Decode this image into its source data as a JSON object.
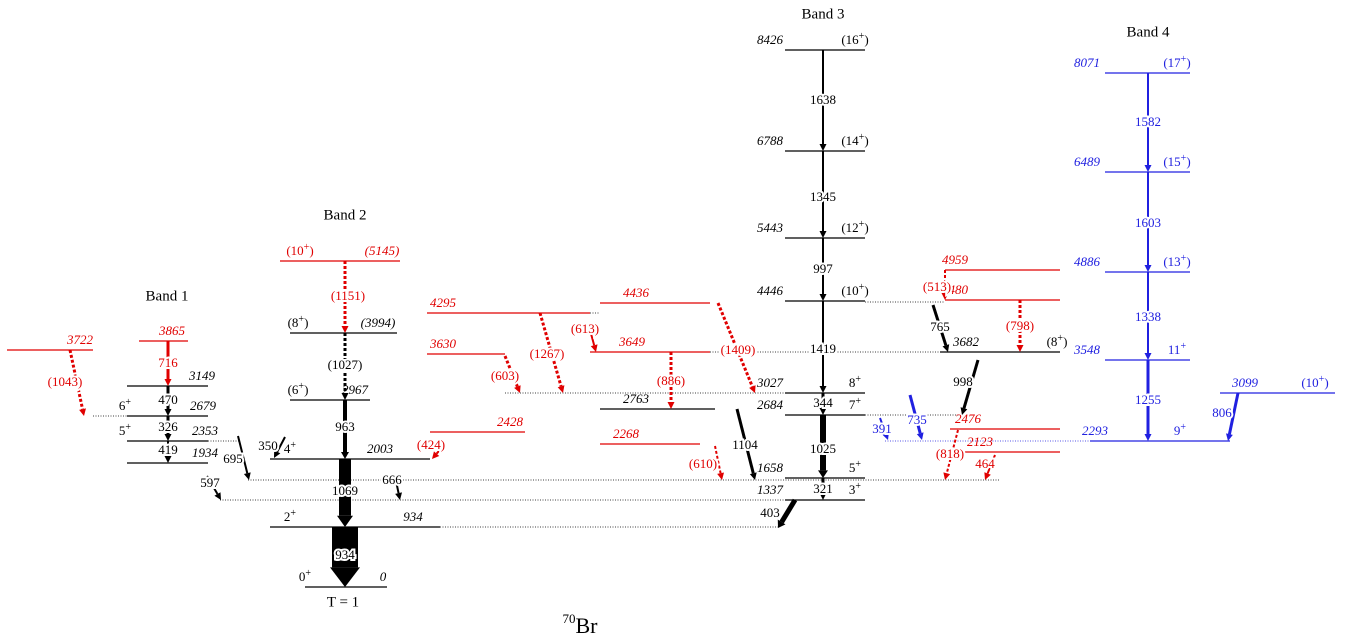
{
  "nucleus": {
    "mass": "70",
    "symbol": "Br"
  },
  "bands": [
    "Band 1",
    "Band 2",
    "Band 3",
    "Band 4"
  ],
  "isospin_label": "T = 1",
  "levels": [
    {
      "energy": "3865",
      "color": "#e00000"
    },
    {
      "energy": "3722",
      "color": "#e00000"
    },
    {
      "energy": "3149",
      "color": "#000000"
    },
    {
      "energy": "2679",
      "spin": [
        "6",
        "+"
      ],
      "color": "#000000"
    },
    {
      "energy": "2353",
      "spin": [
        "5",
        "+"
      ],
      "color": "#000000"
    },
    {
      "energy": "1934",
      "color": "#000000"
    },
    {
      "energy": "(5145)",
      "spin": [
        "(10",
        "+",
        ")"
      ],
      "color": "#e00000"
    },
    {
      "energy": "(3994)",
      "spin": [
        "(8",
        "+",
        ")"
      ],
      "color": "#000000"
    },
    {
      "energy": "2967",
      "spin": [
        "(6",
        "+",
        ")"
      ],
      "color": "#000000"
    },
    {
      "energy": "2003",
      "spin": [
        "4",
        "+"
      ],
      "color": "#000000"
    },
    {
      "energy": "934",
      "spin": [
        "2",
        "+"
      ],
      "color": "#000000"
    },
    {
      "energy": "0",
      "spin": [
        "0",
        "+"
      ],
      "color": "#000000"
    },
    {
      "energy": "2428",
      "color": "#e00000"
    },
    {
      "energy": "4295",
      "color": "#e00000"
    },
    {
      "energy": "3630",
      "color": "#e00000"
    },
    {
      "energy": "4436",
      "color": "#e00000"
    },
    {
      "energy": "3649",
      "color": "#e00000"
    },
    {
      "energy": "2763",
      "color": "#000000"
    },
    {
      "energy": "2268",
      "color": "#e00000"
    },
    {
      "energy": "8426",
      "spin": [
        "(16",
        "+",
        ")"
      ],
      "color": "#000000"
    },
    {
      "energy": "6788",
      "spin": [
        "(14",
        "+",
        ")"
      ],
      "color": "#000000"
    },
    {
      "energy": "5443",
      "spin": [
        "(12",
        "+",
        ")"
      ],
      "color": "#000000"
    },
    {
      "energy": "4446",
      "spin": [
        "(10",
        "+",
        ")"
      ],
      "color": "#000000"
    },
    {
      "energy": "3027",
      "spin": [
        "8",
        "+"
      ],
      "color": "#000000"
    },
    {
      "energy": "2684",
      "spin": [
        "7",
        "+"
      ],
      "color": "#000000"
    },
    {
      "energy": "1658",
      "spin": [
        "5",
        "+"
      ],
      "color": "#000000"
    },
    {
      "energy": "1337",
      "spin": [
        "3",
        "+"
      ],
      "color": "#000000"
    },
    {
      "energy": "4959",
      "color": "#e00000"
    },
    {
      "energy": "4480",
      "color": "#e00000"
    },
    {
      "energy": "3682",
      "spin": [
        "(8",
        "+",
        ")"
      ],
      "color": "#000000"
    },
    {
      "energy": "2476",
      "color": "#e00000"
    },
    {
      "energy": "2123",
      "color": "#e00000"
    },
    {
      "energy": "8071",
      "spin": [
        "(17",
        "+",
        ")"
      ],
      "color": "#2020e0"
    },
    {
      "energy": "6489",
      "spin": [
        "(15",
        "+",
        ")"
      ],
      "color": "#2020e0"
    },
    {
      "energy": "4886",
      "spin": [
        "(13",
        "+",
        ")"
      ],
      "color": "#2020e0"
    },
    {
      "energy": "3548",
      "spin": [
        "11",
        "+"
      ],
      "color": "#2020e0"
    },
    {
      "energy": "2293",
      "spin": [
        "9",
        "+"
      ],
      "color": "#2020e0"
    },
    {
      "energy": "3099",
      "spin": [
        "(10",
        "+",
        ")"
      ],
      "color": "#2020e0"
    }
  ],
  "transitions": [
    {
      "label": "716",
      "color": "#e00000"
    },
    {
      "label": "470",
      "color": "#000000"
    },
    {
      "label": "326",
      "color": "#000000"
    },
    {
      "label": "419",
      "color": "#000000"
    },
    {
      "label": "(1043)",
      "color": "#e00000"
    },
    {
      "label": "695",
      "color": "#000000"
    },
    {
      "label": "597",
      "color": "#000000"
    },
    {
      "label": "350",
      "color": "#000000"
    },
    {
      "label": "(1151)",
      "color": "#e00000"
    },
    {
      "label": "(1027)",
      "color": "#000000"
    },
    {
      "label": "963",
      "color": "#000000"
    },
    {
      "label": "1069",
      "color": "#000000"
    },
    {
      "label": "934",
      "color": "#000000"
    },
    {
      "label": "(424)",
      "color": "#e00000"
    },
    {
      "label": "666",
      "color": "#000000"
    },
    {
      "label": "(1267)",
      "color": "#e00000"
    },
    {
      "label": "(603)",
      "color": "#e00000"
    },
    {
      "label": "(613)",
      "color": "#e00000"
    },
    {
      "label": "(886)",
      "color": "#e00000"
    },
    {
      "label": "(1409)",
      "color": "#e00000"
    },
    {
      "label": "(610)",
      "color": "#e00000"
    },
    {
      "label": "1104",
      "color": "#000000"
    },
    {
      "label": "1638",
      "color": "#000000"
    },
    {
      "label": "1345",
      "color": "#000000"
    },
    {
      "label": "997",
      "color": "#000000"
    },
    {
      "label": "1419",
      "color": "#000000"
    },
    {
      "label": "344",
      "color": "#000000"
    },
    {
      "label": "1025",
      "color": "#000000"
    },
    {
      "label": "321",
      "color": "#000000"
    },
    {
      "label": "403",
      "color": "#000000"
    },
    {
      "label": "(513)",
      "color": "#e00000"
    },
    {
      "label": "765",
      "color": "#000000"
    },
    {
      "label": "(798)",
      "color": "#e00000"
    },
    {
      "label": "998",
      "color": "#000000"
    },
    {
      "label": "(818)",
      "color": "#e00000"
    },
    {
      "label": "464",
      "color": "#e00000"
    },
    {
      "label": "735",
      "color": "#2020e0"
    },
    {
      "label": "391",
      "color": "#2020e0"
    },
    {
      "label": "1582",
      "color": "#2020e0"
    },
    {
      "label": "1603",
      "color": "#2020e0"
    },
    {
      "label": "1338",
      "color": "#2020e0"
    },
    {
      "label": "1255",
      "color": "#2020e0"
    },
    {
      "label": "806",
      "color": "#2020e0"
    }
  ]
}
